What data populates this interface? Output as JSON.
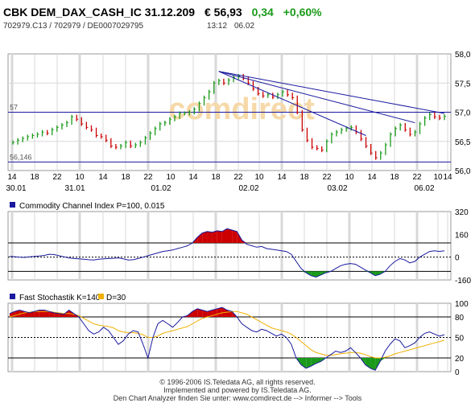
{
  "header": {
    "name": "CBK DEM_DAX_CASH_IC 31.12.209",
    "price": "€ 56,93",
    "change": "0,34",
    "change_pct": "+0,60%",
    "ids": "702979.C13  /  702979  /  DE0007029795",
    "time": "13:12",
    "date": "06.02"
  },
  "colors": {
    "up": "#1a9a1a",
    "down": "#cc0000",
    "line": "#1a1aa0",
    "ma": "#f0b000",
    "grid": "#d8d8d8",
    "watermark": "#f6d9a8"
  },
  "watermark": "comdirect",
  "chart_data": [
    {
      "type": "bar",
      "title": "",
      "ylim": [
        56.0,
        58.0
      ],
      "yticks": [
        "58,0",
        "57,5",
        "57,0",
        "56,5",
        "56,0"
      ],
      "hlines": [
        {
          "label": "57",
          "value": 57.0
        },
        {
          "label": "56,146",
          "value": 56.146
        }
      ],
      "xticks_hours": [
        "14",
        "18",
        "22",
        "10",
        "14",
        "18",
        "22",
        "10",
        "14",
        "18",
        "22",
        "10",
        "14",
        "18",
        "22",
        "10",
        "14",
        "18",
        "22",
        "10",
        "14"
      ],
      "xticks_dates": [
        "30.01",
        "31.01",
        "01.02",
        "02.02",
        "03.02",
        "06.02"
      ],
      "close": [
        56.48,
        56.52,
        56.55,
        56.58,
        56.6,
        56.62,
        56.66,
        56.64,
        56.7,
        56.74,
        56.78,
        56.82,
        56.92,
        56.88,
        56.8,
        56.74,
        56.7,
        56.6,
        56.58,
        56.52,
        56.42,
        56.4,
        56.42,
        56.48,
        56.42,
        56.44,
        56.48,
        56.56,
        56.64,
        56.72,
        56.8,
        56.82,
        56.88,
        56.92,
        56.98,
        56.98,
        57.0,
        57.05,
        57.15,
        57.25,
        57.35,
        57.5,
        57.54,
        57.5,
        57.55,
        57.6,
        57.62,
        57.58,
        57.5,
        57.4,
        57.32,
        57.28,
        57.3,
        57.26,
        57.3,
        57.35,
        57.3,
        57.25,
        57.0,
        56.7,
        56.52,
        56.4,
        56.38,
        56.35,
        56.5,
        56.62,
        56.66,
        56.7,
        56.72,
        56.74,
        56.66,
        56.54,
        56.42,
        56.3,
        56.22,
        56.3,
        56.44,
        56.62,
        56.72,
        56.78,
        56.7,
        56.62,
        56.66,
        56.8,
        56.9,
        56.96,
        56.92,
        56.9,
        56.93
      ],
      "trendlines": [
        {
          "from_index": 42,
          "from_value": 57.7,
          "to_index": 88,
          "to_value": 56.98
        },
        {
          "from_index": 42,
          "from_value": 57.7,
          "to_index": 82,
          "to_value": 56.82
        },
        {
          "from_index": 42,
          "from_value": 57.7,
          "to_index": 72,
          "to_value": 56.6
        }
      ]
    },
    {
      "type": "line",
      "title": "Commodity Channel Index P=100, 0.015",
      "ylim": [
        -160,
        320
      ],
      "yticks": [
        "320",
        "160",
        "0",
        "-160"
      ],
      "hlines": [
        100,
        0,
        -100
      ],
      "fill_above": 100,
      "fill_below": -100,
      "values": [
        5,
        3,
        0,
        -2,
        2,
        5,
        8,
        12,
        20,
        18,
        10,
        2,
        -5,
        -10,
        -12,
        -15,
        -18,
        -20,
        -15,
        -12,
        -10,
        -8,
        -5,
        -12,
        -20,
        -18,
        -10,
        0,
        10,
        20,
        30,
        40,
        45,
        50,
        60,
        70,
        80,
        100,
        140,
        170,
        180,
        175,
        185,
        180,
        200,
        190,
        180,
        120,
        90,
        80,
        70,
        75,
        60,
        55,
        50,
        45,
        40,
        20,
        -30,
        -80,
        -110,
        -130,
        -140,
        -125,
        -110,
        -100,
        -80,
        -60,
        -50,
        -45,
        -50,
        -70,
        -90,
        -110,
        -130,
        -120,
        -100,
        -60,
        -30,
        -10,
        -20,
        -40,
        -30,
        0,
        20,
        40,
        45,
        40,
        45
      ]
    },
    {
      "type": "line",
      "title": "Fast Stochastik K=140",
      "series_names": [
        "Fast Stochastik K=140",
        "D=30"
      ],
      "ylim": [
        0,
        100
      ],
      "yticks": [
        "100",
        "80",
        "50",
        "20",
        "0"
      ],
      "hlines": [
        80,
        50,
        20
      ],
      "fill_above": 80,
      "fill_below": 20,
      "k": [
        85,
        88,
        90,
        88,
        86,
        88,
        90,
        90,
        88,
        86,
        85,
        84,
        90,
        85,
        80,
        70,
        60,
        55,
        58,
        65,
        60,
        50,
        40,
        45,
        55,
        60,
        58,
        40,
        20,
        50,
        70,
        75,
        70,
        65,
        72,
        80,
        82,
        88,
        92,
        90,
        88,
        90,
        92,
        94,
        90,
        88,
        80,
        70,
        65,
        60,
        58,
        62,
        60,
        56,
        52,
        55,
        50,
        40,
        20,
        10,
        5,
        8,
        12,
        15,
        20,
        25,
        30,
        28,
        30,
        35,
        28,
        20,
        10,
        5,
        2,
        15,
        30,
        40,
        48,
        45,
        35,
        38,
        42,
        50,
        56,
        58,
        55,
        52,
        54
      ],
      "d": [
        80,
        82,
        84,
        86,
        87,
        88,
        88,
        88,
        88,
        87,
        86,
        85,
        85,
        84,
        82,
        78,
        74,
        70,
        68,
        67,
        66,
        64,
        60,
        58,
        57,
        57,
        56,
        54,
        50,
        50,
        52,
        56,
        58,
        60,
        62,
        64,
        66,
        70,
        74,
        78,
        80,
        82,
        84,
        86,
        87,
        88,
        88,
        86,
        84,
        80,
        76,
        72,
        68,
        64,
        62,
        60,
        58,
        55,
        50,
        44,
        38,
        32,
        28,
        26,
        24,
        24,
        25,
        26,
        27,
        28,
        28,
        27,
        25,
        22,
        20,
        20,
        21,
        23,
        26,
        28,
        30,
        32,
        34,
        36,
        38,
        40,
        42,
        44,
        46
      ]
    }
  ],
  "footer": {
    "line1": "© 1996-2006 IS.Teledata AG, all rights reserved.",
    "line2": "Implemented and powered by IS.Teledata AG.",
    "line3": "Den Chart Analyzer finden Sie unter: www.comdirect.de --> Informer --> Tools"
  }
}
